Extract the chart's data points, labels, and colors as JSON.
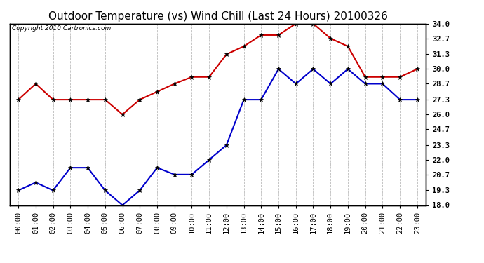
{
  "title": "Outdoor Temperature (vs) Wind Chill (Last 24 Hours) 20100326",
  "copyright": "Copyright 2010 Cartronics.com",
  "hours": [
    "00:00",
    "01:00",
    "02:00",
    "03:00",
    "04:00",
    "05:00",
    "06:00",
    "07:00",
    "08:00",
    "09:00",
    "10:00",
    "11:00",
    "12:00",
    "13:00",
    "14:00",
    "15:00",
    "16:00",
    "17:00",
    "18:00",
    "19:00",
    "20:00",
    "21:00",
    "22:00",
    "23:00"
  ],
  "red_data": [
    27.3,
    28.7,
    27.3,
    27.3,
    27.3,
    27.3,
    26.0,
    27.3,
    28.0,
    28.7,
    29.3,
    29.3,
    31.3,
    32.0,
    33.0,
    33.0,
    34.0,
    34.0,
    32.7,
    32.0,
    29.3,
    29.3,
    29.3,
    30.0
  ],
  "blue_data": [
    19.3,
    20.0,
    19.3,
    21.3,
    21.3,
    19.3,
    18.0,
    19.3,
    21.3,
    20.7,
    20.7,
    22.0,
    23.3,
    27.3,
    27.3,
    30.0,
    28.7,
    30.0,
    28.7,
    30.0,
    28.7,
    28.7,
    27.3,
    27.3
  ],
  "red_color": "#cc0000",
  "blue_color": "#0000cc",
  "ylim_min": 18.0,
  "ylim_max": 34.0,
  "yticks": [
    18.0,
    19.3,
    20.7,
    22.0,
    23.3,
    24.7,
    26.0,
    27.3,
    28.7,
    30.0,
    31.3,
    32.7,
    34.0
  ],
  "bg_color": "#ffffff",
  "plot_bg_color": "#ffffff",
  "grid_color": "#bbbbbb",
  "title_fontsize": 11,
  "copyright_fontsize": 6.5,
  "tick_fontsize": 7.5
}
